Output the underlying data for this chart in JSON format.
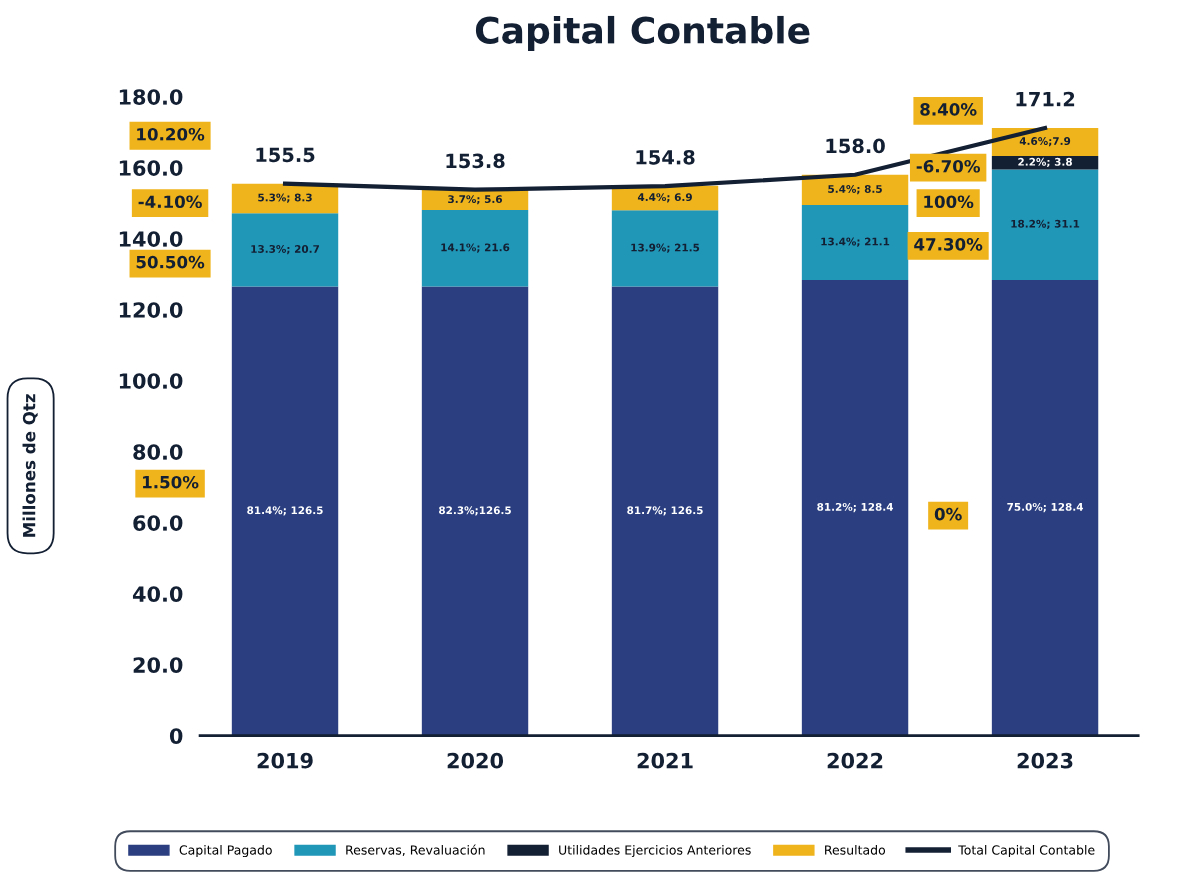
{
  "chart_data": {
    "type": "bar",
    "stacked": true,
    "title": "Capital Contable",
    "ylabel": "Millones de Qtz",
    "categories": [
      "2019",
      "2020",
      "2021",
      "2022",
      "2023"
    ],
    "series": [
      {
        "name": "Capital Pagado",
        "color": "#2b3f80",
        "values": [
          126.5,
          126.5,
          126.5,
          128.4,
          128.4
        ],
        "value_labels": [
          "81.4%; 126.5",
          "82.3%;126.5",
          "81.7%; 126.5",
          "81.2%; 128.4",
          "75.0%; 128.4"
        ]
      },
      {
        "name": "Reservas, Revaluación",
        "color": "#2197b8",
        "values": [
          20.7,
          21.6,
          21.5,
          21.1,
          31.1
        ],
        "value_labels": [
          "13.3%; 20.7",
          "14.1%; 21.6",
          "13.9%; 21.5",
          "13.4%; 21.1",
          "18.2%; 31.1"
        ]
      },
      {
        "name": "Utilidades Ejercicios Anteriores",
        "color": "#131f33",
        "values": [
          null,
          null,
          null,
          null,
          3.8
        ],
        "value_labels": [
          null,
          null,
          null,
          null,
          "2.2%; 3.8"
        ]
      },
      {
        "name": "Resultado",
        "color": "#efb31b",
        "values": [
          8.3,
          5.6,
          6.9,
          8.5,
          7.9
        ],
        "value_labels": [
          "5.3%; 8.3",
          "3.7%; 5.6",
          "4.4%; 6.9",
          "5.4%; 8.5",
          "4.6%;7.9"
        ]
      },
      {
        "name": "Total Capital Contable",
        "type": "line",
        "color": "#131f33",
        "values": [
          155.5,
          153.8,
          154.8,
          158.0,
          171.2
        ],
        "value_labels": [
          "155.5",
          "153.8",
          "154.8",
          "158.0",
          "171.2"
        ]
      }
    ],
    "ylim": [
      0,
      180
    ],
    "yticks": [
      0,
      {
        "value": 20,
        "label": "20.0"
      },
      {
        "value": 40,
        "label": "40.0"
      },
      {
        "value": 60,
        "label": "60.0"
      },
      {
        "value": 80,
        "label": "80.0"
      },
      {
        "value": 100,
        "label": "100.0"
      },
      {
        "value": 120,
        "label": "120.0"
      },
      {
        "value": 140,
        "label": "140.0"
      },
      {
        "value": 160,
        "label": "160.0"
      },
      {
        "value": 180,
        "label": "180.0"
      }
    ],
    "annotations": [
      "10.20%",
      "-4.10%",
      "50.50%",
      "1.50%",
      "8.40%",
      "-6.70%",
      "100%",
      "47.30%",
      "0%"
    ],
    "grid": false,
    "legend": "bottom"
  }
}
